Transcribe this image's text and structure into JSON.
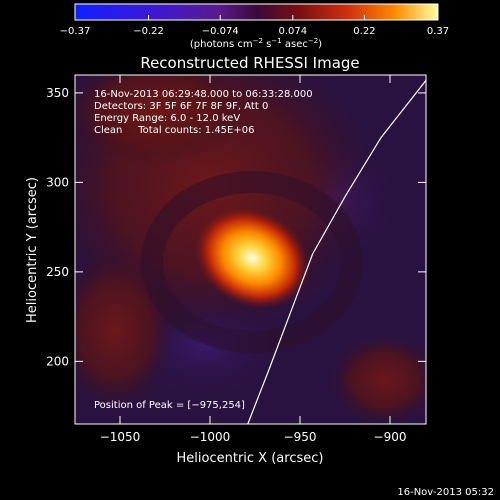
{
  "chart_data": {
    "type": "heatmap",
    "title": "Reconstructed RHESSI Image",
    "xlabel": "Heliocentric X (arcsec)",
    "ylabel": "Heliocentric Y (arcsec)",
    "xlim": [
      -1075,
      -880
    ],
    "ylim": [
      165,
      360
    ],
    "xticks": [
      -1050,
      -1000,
      -950,
      -900
    ],
    "xtick_labels": [
      "−1050",
      "−1000",
      "−950",
      "−900"
    ],
    "yticks": [
      200,
      250,
      300,
      350
    ],
    "ytick_labels": [
      "200",
      "250",
      "300",
      "350"
    ],
    "colorbar": {
      "range": [
        -0.37,
        0.37
      ],
      "ticks": [
        -0.37,
        -0.22,
        -0.074,
        0.074,
        0.22,
        0.37
      ],
      "tick_labels": [
        "−0.37",
        "−0.22",
        "−0.074",
        "0.074",
        "0.22",
        "0.37"
      ],
      "units_prefix": "(photons cm",
      "units_exp1": "−2",
      "units_mid1": " s",
      "units_exp2": "−1",
      "units_mid2": " asec",
      "units_exp3": "−2",
      "units_suffix": ")"
    },
    "info_lines": [
      "16-Nov-2013 06:29:48.000 to 06:33:28.000",
      "Detectors: 3F 5F 6F 7F 8F 9F, Att 0",
      "Energy Range: 6.0 - 12.0 keV",
      "Clean     Total counts: 1.45E+06"
    ],
    "peak_label": "Position of Peak = [−975,254]",
    "peak": {
      "x": -975,
      "y": 254
    },
    "limb_points": [
      [
        -880,
        357
      ],
      [
        -905,
        325
      ],
      [
        -925,
        292
      ],
      [
        -943,
        260
      ],
      [
        -955,
        228
      ],
      [
        -967,
        196
      ],
      [
        -979,
        165
      ]
    ],
    "footer": "16-Nov-2013 05:32",
    "colors": {
      "background": "#000000",
      "axes": "#ffffff",
      "map_base": "#2a1240",
      "halo": "#551010",
      "peak": "#ffffe0"
    }
  }
}
